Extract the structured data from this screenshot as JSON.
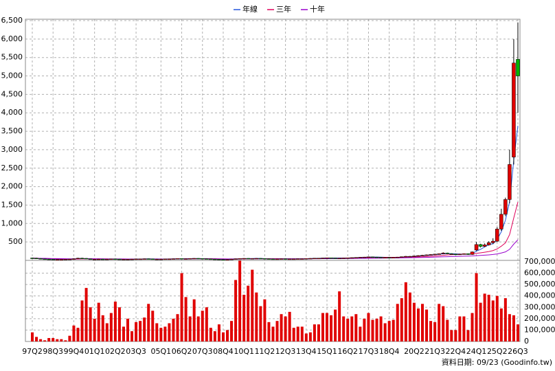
{
  "chart_data": {
    "type": "candlestick",
    "legend": true,
    "footer": "資料日期: 09/23 (Goodinfo.tw)",
    "up_color": "#e00000",
    "down_color": "#00b400",
    "grid": true,
    "categories": [
      "97Q2",
      null,
      null,
      null,
      null,
      "98Q3",
      null,
      null,
      null,
      null,
      "99Q4",
      null,
      null,
      null,
      null,
      "01Q1",
      null,
      null,
      null,
      null,
      "02Q2",
      null,
      null,
      null,
      null,
      "03Q3",
      null,
      null,
      null,
      null,
      null,
      "05Q1",
      null,
      null,
      null,
      null,
      "06Q2",
      null,
      null,
      null,
      null,
      "07Q3",
      null,
      null,
      null,
      null,
      "08Q4",
      null,
      null,
      null,
      null,
      "10Q1",
      null,
      null,
      null,
      null,
      "11Q2",
      null,
      null,
      null,
      null,
      "12Q3",
      null,
      null,
      null,
      null,
      "13Q4",
      null,
      null,
      null,
      null,
      "15Q1",
      null,
      null,
      null,
      null,
      "16Q2",
      null,
      null,
      null,
      null,
      "17Q3",
      null,
      null,
      null,
      null,
      "18Q4",
      null,
      null,
      null,
      null,
      null,
      "20Q2",
      null,
      null,
      null,
      null,
      "21Q3",
      null,
      null,
      null,
      null,
      "22Q4",
      null,
      null,
      null,
      null,
      "24Q1",
      null,
      null,
      null,
      null,
      "25Q2",
      null,
      null,
      null,
      null,
      "26Q3"
    ],
    "open": [
      65,
      60,
      50,
      40,
      35,
      30,
      25,
      25,
      25,
      30,
      35,
      45,
      60,
      55,
      40,
      30,
      30,
      35,
      30,
      35,
      40,
      35,
      30,
      30,
      30,
      35,
      40,
      40,
      45,
      40,
      35,
      35,
      35,
      40,
      40,
      45,
      50,
      45,
      45,
      50,
      55,
      50,
      45,
      40,
      35,
      30,
      25,
      20,
      25,
      35,
      45,
      50,
      55,
      50,
      50,
      55,
      50,
      45,
      40,
      35,
      40,
      45,
      40,
      40,
      40,
      45,
      45,
      50,
      55,
      60,
      60,
      65,
      70,
      65,
      60,
      60,
      65,
      70,
      75,
      80,
      85,
      90,
      95,
      90,
      85,
      80,
      80,
      75,
      80,
      90,
      100,
      110,
      110,
      120,
      130,
      140,
      150,
      160,
      170,
      180,
      200,
      180,
      170,
      160,
      170,
      180,
      160,
      280,
      430,
      380,
      420,
      480,
      520,
      850,
      1250,
      1650,
      2800,
      5450
    ],
    "high": [
      75,
      70,
      60,
      45,
      40,
      35,
      30,
      30,
      35,
      40,
      55,
      70,
      70,
      60,
      45,
      40,
      40,
      40,
      40,
      45,
      45,
      40,
      35,
      35,
      40,
      45,
      45,
      50,
      50,
      45,
      40,
      40,
      45,
      45,
      50,
      55,
      55,
      50,
      55,
      60,
      60,
      55,
      50,
      45,
      40,
      35,
      30,
      30,
      40,
      50,
      55,
      60,
      60,
      55,
      60,
      60,
      55,
      50,
      45,
      45,
      50,
      50,
      45,
      45,
      50,
      50,
      55,
      60,
      65,
      65,
      70,
      75,
      75,
      70,
      65,
      70,
      75,
      80,
      85,
      90,
      95,
      100,
      100,
      95,
      90,
      85,
      85,
      85,
      95,
      105,
      120,
      120,
      130,
      140,
      150,
      160,
      170,
      180,
      190,
      220,
      210,
      190,
      180,
      180,
      190,
      190,
      240,
      500,
      450,
      460,
      520,
      600,
      900,
      1400,
      1700,
      3000,
      6000,
      6450
    ],
    "low": [
      50,
      45,
      35,
      30,
      25,
      20,
      20,
      20,
      20,
      25,
      30,
      40,
      50,
      35,
      25,
      25,
      25,
      25,
      25,
      30,
      30,
      25,
      25,
      25,
      25,
      30,
      35,
      35,
      35,
      30,
      30,
      30,
      30,
      35,
      35,
      40,
      40,
      40,
      40,
      45,
      45,
      40,
      35,
      30,
      25,
      20,
      15,
      15,
      20,
      30,
      40,
      45,
      45,
      45,
      45,
      45,
      40,
      35,
      30,
      30,
      35,
      35,
      35,
      35,
      35,
      40,
      40,
      45,
      50,
      55,
      55,
      60,
      60,
      55,
      55,
      55,
      60,
      65,
      70,
      75,
      80,
      85,
      85,
      80,
      75,
      75,
      70,
      70,
      75,
      85,
      95,
      100,
      105,
      115,
      125,
      135,
      145,
      155,
      165,
      170,
      170,
      160,
      150,
      150,
      160,
      150,
      150,
      260,
      350,
      360,
      400,
      440,
      500,
      800,
      1200,
      1550,
      2600,
      4000
    ],
    "close": [
      60,
      50,
      40,
      35,
      30,
      25,
      25,
      25,
      30,
      35,
      45,
      60,
      55,
      40,
      30,
      30,
      35,
      30,
      35,
      40,
      35,
      30,
      30,
      30,
      35,
      40,
      40,
      45,
      40,
      35,
      35,
      35,
      40,
      40,
      45,
      50,
      45,
      45,
      50,
      55,
      50,
      45,
      40,
      35,
      30,
      25,
      20,
      25,
      35,
      45,
      50,
      55,
      50,
      50,
      55,
      50,
      45,
      40,
      35,
      40,
      45,
      40,
      40,
      40,
      45,
      45,
      50,
      55,
      60,
      60,
      65,
      70,
      65,
      60,
      60,
      65,
      70,
      75,
      80,
      85,
      90,
      95,
      90,
      85,
      80,
      80,
      75,
      80,
      90,
      100,
      110,
      110,
      120,
      130,
      140,
      150,
      160,
      170,
      180,
      200,
      180,
      170,
      160,
      170,
      180,
      160,
      230,
      430,
      380,
      420,
      480,
      520,
      850,
      1250,
      1650,
      2600,
      5350,
      5000
    ],
    "series": [
      {
        "name": "年線",
        "color": "#2255dd",
        "values": [
          60,
          55,
          50,
          45,
          40,
          35,
          30,
          28,
          28,
          30,
          35,
          40,
          45,
          50,
          45,
          40,
          35,
          33,
          33,
          35,
          37,
          35,
          34,
          32,
          32,
          34,
          36,
          40,
          41,
          40,
          39,
          37,
          37,
          38,
          40,
          43,
          45,
          46,
          48,
          49,
          50,
          49,
          48,
          43,
          38,
          33,
          28,
          26,
          27,
          33,
          39,
          45,
          49,
          51,
          53,
          52,
          50,
          47,
          43,
          41,
          41,
          41,
          41,
          41,
          42,
          43,
          45,
          49,
          53,
          57,
          60,
          64,
          65,
          64,
          64,
          64,
          65,
          68,
          73,
          78,
          83,
          88,
          90,
          90,
          88,
          84,
          80,
          79,
          81,
          86,
          95,
          103,
          110,
          118,
          125,
          135,
          145,
          155,
          165,
          178,
          183,
          183,
          178,
          172,
          170,
          168,
          185,
          250,
          300,
          365,
          428,
          450,
          570,
          775,
          1092,
          1588,
          2713,
          3650
        ]
      },
      {
        "name": "三年",
        "color": "#e0005a",
        "values": [
          60,
          58,
          55,
          52,
          48,
          44,
          40,
          37,
          35,
          34,
          33,
          35,
          38,
          40,
          41,
          41,
          41,
          40,
          39,
          38,
          37,
          37,
          36,
          35,
          35,
          35,
          35,
          36,
          37,
          37,
          38,
          38,
          38,
          39,
          39,
          40,
          41,
          42,
          43,
          44,
          45,
          46,
          46,
          45,
          44,
          42,
          40,
          38,
          36,
          36,
          36,
          37,
          38,
          40,
          42,
          44,
          46,
          47,
          47,
          46,
          45,
          43,
          42,
          42,
          42,
          42,
          43,
          44,
          46,
          48,
          50,
          53,
          55,
          56,
          58,
          60,
          62,
          63,
          64,
          66,
          69,
          72,
          76,
          79,
          81,
          83,
          85,
          85,
          85,
          86,
          87,
          89,
          91,
          94,
          98,
          104,
          111,
          119,
          127,
          137,
          146,
          154,
          160,
          165,
          170,
          171,
          172,
          190,
          205,
          222,
          240,
          265,
          310,
          385,
          475,
          700,
          1150,
          1580
        ]
      },
      {
        "name": "十年",
        "color": "#9900cc",
        "values": [
          60,
          59,
          57,
          55,
          52,
          50,
          48,
          46,
          44,
          43,
          43,
          43,
          44,
          44,
          44,
          43,
          42,
          41,
          40,
          40,
          40,
          39,
          39,
          38,
          38,
          38,
          38,
          38,
          38,
          38,
          38,
          38,
          38,
          38,
          38,
          38,
          38,
          39,
          39,
          40,
          40,
          40,
          41,
          41,
          41,
          40,
          40,
          40,
          40,
          40,
          41,
          41,
          42,
          42,
          42,
          42,
          42,
          42,
          42,
          42,
          42,
          43,
          43,
          43,
          43,
          43,
          44,
          44,
          45,
          45,
          46,
          47,
          48,
          48,
          49,
          50,
          51,
          52,
          53,
          55,
          56,
          58,
          59,
          60,
          61,
          62,
          63,
          64,
          66,
          68,
          70,
          72,
          74,
          76,
          79,
          82,
          86,
          89,
          93,
          97,
          101,
          104,
          107,
          110,
          113,
          116,
          120,
          128,
          135,
          142,
          150,
          160,
          175,
          200,
          230,
          300,
          440,
          560
        ]
      }
    ],
    "ylim": [
      0,
      6500
    ],
    "yticks": [
      500,
      {
        "value": 1000,
        "label": "1,000"
      },
      {
        "value": 1500,
        "label": "1,500"
      },
      {
        "value": 2000,
        "label": "2,000"
      },
      {
        "value": 2500,
        "label": "2,500"
      },
      {
        "value": 3000,
        "label": "3,000"
      },
      {
        "value": 3500,
        "label": "3,500"
      },
      {
        "value": 4000,
        "label": "4,000"
      },
      {
        "value": 4500,
        "label": "4,500"
      },
      {
        "value": 5000,
        "label": "5,000"
      },
      {
        "value": 5500,
        "label": "5,500"
      },
      {
        "value": 6000,
        "label": "6,000"
      },
      {
        "value": 6500,
        "label": "6,500"
      }
    ],
    "volume": {
      "color": "#e00000",
      "values": [
        80000,
        40000,
        20000,
        10000,
        30000,
        30000,
        20000,
        20000,
        10000,
        50000,
        140000,
        120000,
        360000,
        470000,
        300000,
        200000,
        340000,
        230000,
        160000,
        250000,
        350000,
        300000,
        130000,
        200000,
        90000,
        170000,
        180000,
        210000,
        330000,
        270000,
        160000,
        120000,
        130000,
        160000,
        200000,
        240000,
        600000,
        390000,
        220000,
        370000,
        220000,
        270000,
        300000,
        120000,
        90000,
        150000,
        80000,
        100000,
        180000,
        540000,
        710000,
        410000,
        490000,
        630000,
        430000,
        310000,
        370000,
        170000,
        130000,
        180000,
        240000,
        220000,
        260000,
        120000,
        130000,
        130000,
        70000,
        80000,
        150000,
        150000,
        250000,
        250000,
        230000,
        280000,
        440000,
        220000,
        200000,
        220000,
        240000,
        130000,
        200000,
        250000,
        190000,
        200000,
        220000,
        160000,
        180000,
        190000,
        330000,
        380000,
        520000,
        430000,
        340000,
        290000,
        330000,
        280000,
        180000,
        170000,
        330000,
        310000,
        190000,
        100000,
        100000,
        220000,
        220000,
        100000,
        250000,
        600000,
        340000,
        420000,
        410000,
        360000,
        400000,
        290000,
        380000,
        240000,
        230000,
        150000
      ],
      "y2lim": [
        0,
        700000
      ],
      "y2ticks": [
        0,
        {
          "value": 100000,
          "label": "100,000"
        },
        {
          "value": 200000,
          "label": "200,000"
        },
        {
          "value": 300000,
          "label": "300,000"
        },
        {
          "value": 400000,
          "label": "400,000"
        },
        {
          "value": 500000,
          "label": "500,000"
        },
        {
          "value": 600000,
          "label": "600,000"
        },
        {
          "value": 700000,
          "label": "700,000"
        }
      ]
    }
  }
}
